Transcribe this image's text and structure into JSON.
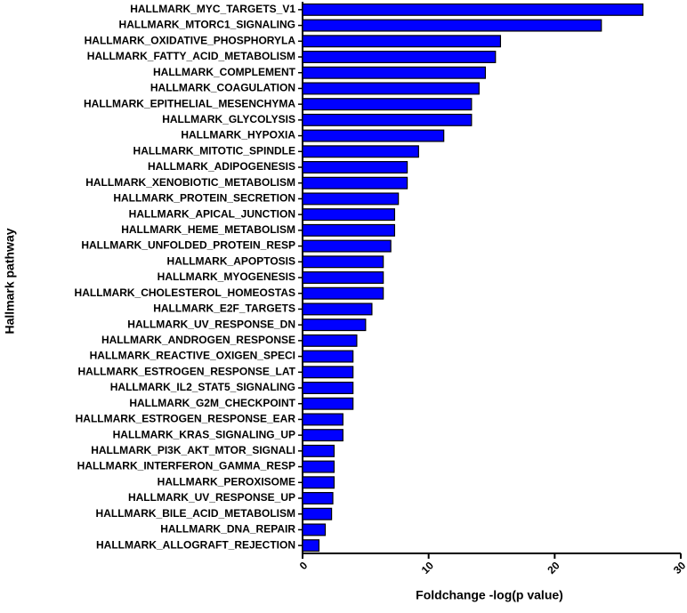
{
  "chart_data": {
    "type": "hbar",
    "x_label": "Foldchange -log(p value)",
    "y_label": "Hallmark pathway",
    "color": "#0000ff",
    "xlim": [
      0,
      30
    ],
    "xticks": [
      0,
      10,
      20,
      30
    ],
    "categories": [
      "HALLMARK_MYC_TARGETS_V1",
      "HALLMARK_MTORC1_SIGNALING",
      "HALLMARK_OXIDATIVE_PHOSPHORYLA",
      "HALLMARK_FATTY_ACID_METABOLISM",
      "HALLMARK_COMPLEMENT",
      "HALLMARK_COAGULATION",
      "HALLMARK_EPITHELIAL_MESENCHYMA",
      "HALLMARK_GLYCOLYSIS",
      "HALLMARK_HYPOXIA",
      "HALLMARK_MITOTIC_SPINDLE",
      "HALLMARK_ADIPOGENESIS",
      "HALLMARK_XENOBIOTIC_METABOLISM",
      "HALLMARK_PROTEIN_SECRETION",
      "HALLMARK_APICAL_JUNCTION",
      "HALLMARK_HEME_METABOLISM",
      "HALLMARK_UNFOLDED_PROTEIN_RESP",
      "HALLMARK_APOPTOSIS",
      "HALLMARK_MYOGENESIS",
      "HALLMARK_CHOLESTEROL_HOMEOSTAS",
      "HALLMARK_E2F_TARGETS",
      "HALLMARK_UV_RESPONSE_DN",
      "HALLMARK_ANDROGEN_RESPONSE",
      "HALLMARK_REACTIVE_OXIGEN_SPECI",
      "HALLMARK_ESTROGEN_RESPONSE_LAT",
      "HALLMARK_IL2_STAT5_SIGNALING",
      "HALLMARK_G2M_CHECKPOINT",
      "HALLMARK_ESTROGEN_RESPONSE_EAR",
      "HALLMARK_KRAS_SIGNALING_UP",
      "HALLMARK_PI3K_AKT_MTOR_SIGNALI",
      "HALLMARK_INTERFERON_GAMMA_RESP",
      "HALLMARK_PEROXISOME",
      "HALLMARK_UV_RESPONSE_UP",
      "HALLMARK_BILE_ACID_METABOLISM",
      "HALLMARK_DNA_REPAIR",
      "HALLMARK_ALLOGRAFT_REJECTION"
    ],
    "values": [
      27.0,
      23.7,
      15.7,
      15.3,
      14.5,
      14.0,
      13.4,
      13.4,
      11.2,
      9.2,
      8.3,
      8.3,
      7.6,
      7.3,
      7.3,
      7.0,
      6.4,
      6.4,
      6.4,
      5.5,
      5.0,
      4.3,
      4.0,
      4.0,
      4.0,
      4.0,
      3.2,
      3.2,
      2.5,
      2.5,
      2.5,
      2.4,
      2.3,
      1.8,
      1.3
    ]
  }
}
